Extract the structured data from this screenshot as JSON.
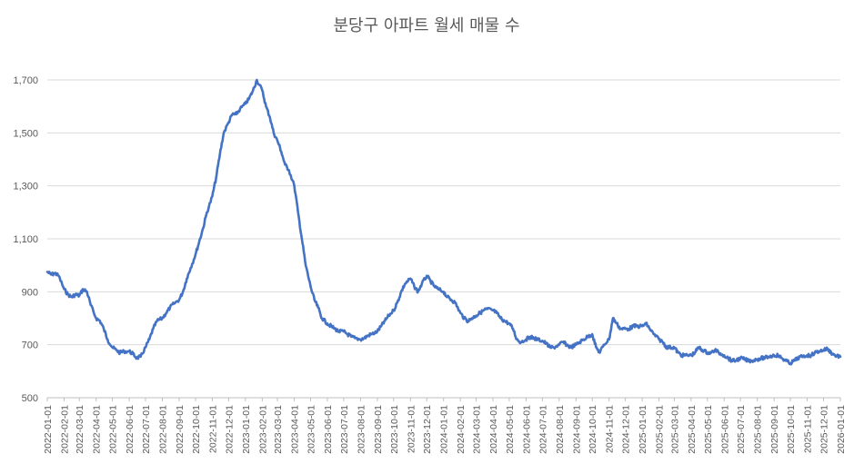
{
  "chart_data": {
    "type": "line",
    "title": "분당구 아파트 월세 매물 수",
    "xlabel": "",
    "ylabel": "",
    "ylim": [
      500,
      1800
    ],
    "yticks": [
      500,
      700,
      900,
      1100,
      1300,
      1500,
      1700
    ],
    "ytick_labels": [
      "500",
      "700",
      "900",
      "1,100",
      "1,300",
      "1,500",
      "1,700"
    ],
    "grid": true,
    "legend": "none",
    "colors": {
      "series": "#4472c4",
      "grid": "#d9d9d9",
      "text": "#595959"
    },
    "x_tick_labels": [
      "2022-01-01",
      "2022-02-01",
      "2022-03-01",
      "2022-04-01",
      "2022-05-01",
      "2022-06-01",
      "2022-07-01",
      "2022-08-01",
      "2022-09-01",
      "2022-10-01",
      "2022-11-01",
      "2022-12-01",
      "2023-01-01",
      "2023-02-01",
      "2023-03-01",
      "2023-04-01",
      "2023-05-01",
      "2023-06-01",
      "2023-07-01",
      "2023-08-01",
      "2023-09-01",
      "2023-10-01",
      "2023-11-01",
      "2023-12-01",
      "2024-01-01",
      "2024-02-01",
      "2024-03-01",
      "2024-04-01",
      "2024-05-01",
      "2024-06-01",
      "2024-07-01",
      "2024-08-01",
      "2024-09-01",
      "2024-10-01",
      "2024-11-01",
      "2024-12-01",
      "2025-01-01",
      "2025-02-01",
      "2025-03-01",
      "2025-04-01",
      "2025-05-01",
      "2025-06-01",
      "2025-07-01",
      "2025-08-01",
      "2025-09-01",
      "2025-10-01",
      "2025-11-01",
      "2025-12-01",
      "2026-01-01"
    ],
    "series": [
      {
        "x": [
          "2022-01-01",
          "2022-01-08",
          "2022-01-15",
          "2022-01-22",
          "2022-02-01",
          "2022-02-08",
          "2022-02-15",
          "2022-02-22",
          "2022-03-01",
          "2022-03-08",
          "2022-03-15",
          "2022-03-22",
          "2022-04-01",
          "2022-04-08",
          "2022-04-15",
          "2022-04-22",
          "2022-05-01",
          "2022-05-08",
          "2022-05-15",
          "2022-05-22",
          "2022-06-01",
          "2022-06-08",
          "2022-06-15",
          "2022-06-22",
          "2022-07-01",
          "2022-07-08",
          "2022-07-15",
          "2022-07-22",
          "2022-08-01",
          "2022-08-08",
          "2022-08-15",
          "2022-08-22",
          "2022-09-01",
          "2022-09-08",
          "2022-09-15",
          "2022-09-22",
          "2022-10-01",
          "2022-10-08",
          "2022-10-15",
          "2022-10-22",
          "2022-11-01",
          "2022-11-08",
          "2022-11-15",
          "2022-11-22",
          "2022-12-01",
          "2022-12-08",
          "2022-12-15",
          "2022-12-22",
          "2023-01-01",
          "2023-01-08",
          "2023-01-15",
          "2023-01-22",
          "2023-02-01",
          "2023-02-08",
          "2023-02-15",
          "2023-02-22",
          "2023-03-01",
          "2023-03-08",
          "2023-03-15",
          "2023-03-22",
          "2023-04-01",
          "2023-04-08",
          "2023-04-15",
          "2023-04-22",
          "2023-05-01",
          "2023-05-08",
          "2023-05-15",
          "2023-05-22",
          "2023-06-01",
          "2023-06-08",
          "2023-06-15",
          "2023-06-22",
          "2023-07-01",
          "2023-07-08",
          "2023-07-15",
          "2023-07-22",
          "2023-08-01",
          "2023-08-08",
          "2023-08-15",
          "2023-08-22",
          "2023-09-01",
          "2023-09-08",
          "2023-09-15",
          "2023-09-22",
          "2023-10-01",
          "2023-10-08",
          "2023-10-15",
          "2023-10-22",
          "2023-11-01",
          "2023-11-08",
          "2023-11-15",
          "2023-11-22",
          "2023-12-01",
          "2023-12-08",
          "2023-12-15",
          "2023-12-22",
          "2024-01-01",
          "2024-01-08",
          "2024-01-15",
          "2024-01-22",
          "2024-02-01",
          "2024-02-08",
          "2024-02-15",
          "2024-02-22",
          "2024-03-01",
          "2024-03-08",
          "2024-03-15",
          "2024-03-22",
          "2024-04-01",
          "2024-04-08",
          "2024-04-15",
          "2024-04-22",
          "2024-05-01",
          "2024-05-08",
          "2024-05-15",
          "2024-05-22",
          "2024-06-01",
          "2024-06-08",
          "2024-06-15",
          "2024-06-22",
          "2024-07-01",
          "2024-07-08",
          "2024-07-15",
          "2024-07-22",
          "2024-08-01",
          "2024-08-08",
          "2024-08-15",
          "2024-08-22",
          "2024-09-01",
          "2024-09-08",
          "2024-09-15",
          "2024-09-22",
          "2024-10-01",
          "2024-10-08",
          "2024-10-15",
          "2024-10-22",
          "2024-11-01",
          "2024-11-08",
          "2024-11-15",
          "2024-11-22",
          "2024-12-01",
          "2024-12-08",
          "2024-12-15",
          "2024-12-22",
          "2025-01-01",
          "2025-01-08",
          "2025-01-15",
          "2025-01-22",
          "2025-02-01",
          "2025-02-08",
          "2025-02-15",
          "2025-02-22",
          "2025-03-01",
          "2025-03-08",
          "2025-03-15",
          "2025-03-22",
          "2025-04-01",
          "2025-04-08",
          "2025-04-15",
          "2025-04-22",
          "2025-05-01",
          "2025-05-08",
          "2025-05-15",
          "2025-05-22",
          "2025-06-01",
          "2025-06-08",
          "2025-06-15",
          "2025-06-22",
          "2025-07-01",
          "2025-07-08",
          "2025-07-15",
          "2025-07-22",
          "2025-08-01",
          "2025-08-08",
          "2025-08-15",
          "2025-08-22",
          "2025-09-01",
          "2025-09-08",
          "2025-09-15",
          "2025-09-22",
          "2025-10-01",
          "2025-10-08",
          "2025-10-15",
          "2025-10-22",
          "2025-11-01",
          "2025-11-08",
          "2025-11-15",
          "2025-11-22",
          "2025-12-01",
          "2025-12-08",
          "2025-12-15",
          "2025-12-22",
          "2026-01-01"
        ],
        "values": [
          975,
          965,
          970,
          960,
          910,
          890,
          880,
          890,
          885,
          910,
          900,
          850,
          800,
          790,
          760,
          720,
          690,
          680,
          670,
          675,
          675,
          665,
          650,
          655,
          690,
          720,
          760,
          790,
          800,
          820,
          840,
          855,
          870,
          900,
          950,
          990,
          1040,
          1090,
          1140,
          1200,
          1260,
          1330,
          1420,
          1500,
          1540,
          1570,
          1570,
          1590,
          1610,
          1630,
          1660,
          1700,
          1660,
          1600,
          1560,
          1500,
          1470,
          1430,
          1380,
          1360,
          1300,
          1200,
          1100,
          1000,
          920,
          870,
          840,
          800,
          780,
          770,
          760,
          750,
          750,
          740,
          730,
          725,
          720,
          725,
          735,
          740,
          750,
          770,
          790,
          810,
          830,
          860,
          900,
          930,
          950,
          920,
          900,
          930,
          960,
          940,
          920,
          910,
          900,
          880,
          870,
          860,
          820,
          800,
          790,
          800,
          810,
          820,
          830,
          835,
          830,
          820,
          800,
          790,
          780,
          760,
          720,
          710,
          720,
          730,
          725,
          720,
          715,
          705,
          690,
          690,
          700,
          710,
          700,
          690,
          700,
          710,
          720,
          730,
          740,
          690,
          670,
          700,
          720,
          800,
          780,
          760,
          760,
          760,
          770,
          770,
          770,
          780,
          760,
          740,
          720,
          710,
          690,
          690,
          690,
          670,
          660,
          660,
          660,
          670,
          690,
          680,
          670,
          670,
          680,
          670,
          660,
          650,
          640,
          640,
          650,
          645,
          640,
          640,
          645,
          650,
          650,
          655,
          660,
          660,
          650,
          640,
          630,
          640,
          650,
          655,
          660,
          660,
          670,
          675,
          680,
          685,
          670,
          660,
          655
        ]
      }
    ]
  }
}
